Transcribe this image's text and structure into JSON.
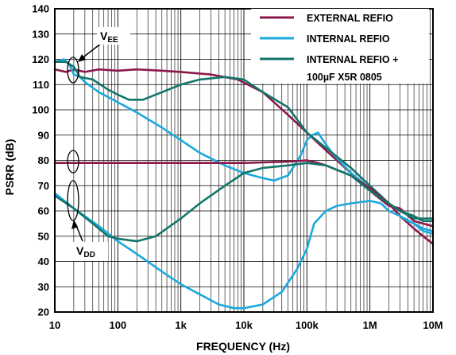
{
  "chart_data": {
    "type": "line",
    "xlabel": "FREQUENCY (Hz)",
    "ylabel": "PSRR (dB)",
    "x_scale": "log",
    "xlim": [
      10,
      10000000
    ],
    "ylim": [
      20,
      140
    ],
    "grid": true,
    "legend_position": "top-right",
    "x_ticks": [
      {
        "value": 10,
        "label": "10"
      },
      {
        "value": 100,
        "label": "100"
      },
      {
        "value": 1000,
        "label": "1k"
      },
      {
        "value": 10000,
        "label": "10k"
      },
      {
        "value": 100000,
        "label": "100k"
      },
      {
        "value": 1000000,
        "label": "1M"
      },
      {
        "value": 10000000,
        "label": "10M"
      }
    ],
    "y_ticks": [
      20,
      30,
      40,
      50,
      60,
      70,
      80,
      90,
      100,
      110,
      120,
      130,
      140
    ],
    "legend": [
      {
        "label": "EXTERNAL REFIO",
        "color": "#8b1a4a"
      },
      {
        "label": "INTERNAL REFIO",
        "color": "#1ba9dd"
      },
      {
        "label": "INTERNAL REFIO +",
        "label2": "100µF X5R 0805",
        "color": "#13756a"
      }
    ],
    "annotations": [
      {
        "main": "V",
        "sub": "EE",
        "target": "top curves near 20 Hz, ~117 dB"
      },
      {
        "main": "V",
        "sub": "DD",
        "target": "lower curves near 20 Hz, ~70 dB"
      }
    ],
    "series": [
      {
        "label": "EXTERNAL REFIO",
        "supply": "VEE",
        "color": "#8b1a4a",
        "points": [
          [
            10,
            116
          ],
          [
            15,
            115
          ],
          [
            20,
            116
          ],
          [
            30,
            115
          ],
          [
            50,
            116
          ],
          [
            100,
            115.5
          ],
          [
            200,
            116
          ],
          [
            500,
            115.5
          ],
          [
            1000,
            115
          ],
          [
            3000,
            114
          ],
          [
            8000,
            112
          ],
          [
            20000,
            107
          ],
          [
            50000,
            98
          ],
          [
            100000,
            91
          ],
          [
            200000,
            84
          ],
          [
            500000,
            75
          ],
          [
            1000000,
            68
          ],
          [
            2000000,
            62
          ],
          [
            3000000,
            61
          ],
          [
            5000000,
            56
          ],
          [
            7000000,
            55
          ],
          [
            10000000,
            54
          ]
        ]
      },
      {
        "label": "INTERNAL REFIO",
        "supply": "VEE",
        "color": "#1ba9dd",
        "points": [
          [
            10,
            119
          ],
          [
            14,
            120
          ],
          [
            17,
            118
          ],
          [
            20,
            114
          ],
          [
            25,
            113
          ],
          [
            30,
            111
          ],
          [
            50,
            107
          ],
          [
            100,
            103
          ],
          [
            200,
            99
          ],
          [
            500,
            93
          ],
          [
            1000,
            88
          ],
          [
            2000,
            83
          ],
          [
            5000,
            78
          ],
          [
            10000,
            75
          ],
          [
            20000,
            73
          ],
          [
            30000,
            72
          ],
          [
            50000,
            74
          ],
          [
            80000,
            82
          ],
          [
            100000,
            88
          ],
          [
            120000,
            90
          ],
          [
            150000,
            91
          ],
          [
            180000,
            88
          ],
          [
            250000,
            83
          ],
          [
            500000,
            75
          ],
          [
            1000000,
            69
          ],
          [
            2000000,
            63
          ],
          [
            3000000,
            58
          ],
          [
            5000000,
            55
          ],
          [
            7000000,
            52
          ],
          [
            10000000,
            51
          ]
        ]
      },
      {
        "label": "INTERNAL REFIO + 100µF X5R 0805",
        "supply": "VEE",
        "color": "#13756a",
        "points": [
          [
            10,
            119
          ],
          [
            15,
            119
          ],
          [
            20,
            117
          ],
          [
            25,
            113
          ],
          [
            40,
            112
          ],
          [
            70,
            108
          ],
          [
            100,
            106
          ],
          [
            150,
            104
          ],
          [
            250,
            104
          ],
          [
            500,
            107
          ],
          [
            1000,
            110
          ],
          [
            2000,
            112
          ],
          [
            5000,
            113
          ],
          [
            10000,
            112
          ],
          [
            20000,
            107
          ],
          [
            50000,
            101
          ],
          [
            100000,
            91
          ],
          [
            200000,
            85
          ],
          [
            500000,
            77
          ],
          [
            1000000,
            70
          ],
          [
            2000000,
            63
          ],
          [
            3000000,
            60
          ],
          [
            5000000,
            57
          ],
          [
            10000000,
            57
          ]
        ]
      },
      {
        "label": "EXTERNAL REFIO",
        "supply": "VDD",
        "color": "#8b1a4a",
        "points": [
          [
            10,
            79
          ],
          [
            100,
            79
          ],
          [
            1000,
            79
          ],
          [
            10000,
            79
          ],
          [
            50000,
            79.5
          ],
          [
            100000,
            80
          ],
          [
            150000,
            79
          ],
          [
            200000,
            78
          ],
          [
            500000,
            74
          ],
          [
            1000000,
            69
          ],
          [
            2000000,
            63
          ],
          [
            3000000,
            58
          ],
          [
            5000000,
            53
          ],
          [
            7000000,
            50
          ],
          [
            10000000,
            47
          ]
        ]
      },
      {
        "label": "INTERNAL REFIO",
        "supply": "VDD",
        "color": "#1ba9dd",
        "points": [
          [
            10,
            67
          ],
          [
            20,
            61
          ],
          [
            50,
            54
          ],
          [
            100,
            48
          ],
          [
            200,
            43
          ],
          [
            500,
            36
          ],
          [
            1000,
            31
          ],
          [
            2000,
            27
          ],
          [
            4000,
            23
          ],
          [
            7000,
            21.5
          ],
          [
            10000,
            21.5
          ],
          [
            20000,
            23
          ],
          [
            40000,
            28
          ],
          [
            70000,
            37
          ],
          [
            100000,
            45
          ],
          [
            130000,
            55
          ],
          [
            200000,
            60
          ],
          [
            300000,
            62
          ],
          [
            500000,
            63
          ],
          [
            1000000,
            64
          ],
          [
            1500000,
            63
          ],
          [
            2000000,
            60
          ],
          [
            3000000,
            58
          ],
          [
            4000000,
            56
          ],
          [
            5000000,
            55
          ],
          [
            7000000,
            53
          ],
          [
            10000000,
            52
          ]
        ]
      },
      {
        "label": "INTERNAL REFIO + 100µF X5R 0805",
        "supply": "VDD",
        "color": "#13756a",
        "points": [
          [
            10,
            66
          ],
          [
            20,
            61
          ],
          [
            40,
            55
          ],
          [
            70,
            50
          ],
          [
            100,
            49
          ],
          [
            200,
            48
          ],
          [
            400,
            50
          ],
          [
            1000,
            57
          ],
          [
            2000,
            63
          ],
          [
            5000,
            70
          ],
          [
            10000,
            75
          ],
          [
            20000,
            77
          ],
          [
            50000,
            78
          ],
          [
            100000,
            79
          ],
          [
            200000,
            78
          ],
          [
            500000,
            74
          ],
          [
            1000000,
            68
          ],
          [
            2000000,
            63
          ],
          [
            3000000,
            60
          ],
          [
            5000000,
            58
          ],
          [
            7000000,
            56
          ],
          [
            10000000,
            56
          ]
        ]
      }
    ]
  }
}
